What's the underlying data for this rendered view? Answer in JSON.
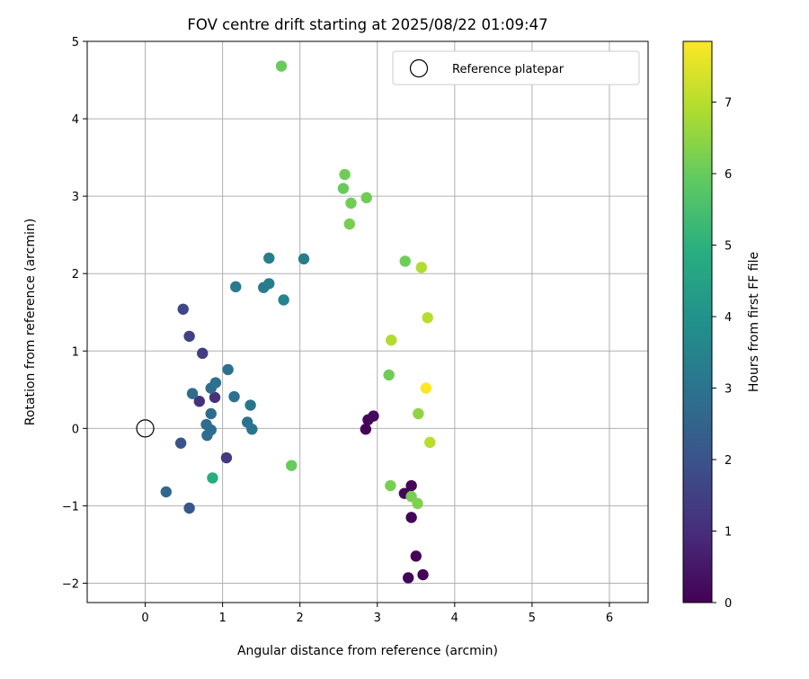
{
  "chart_data": {
    "type": "scatter",
    "title": "FOV centre drift starting at 2025/08/22 01:09:47",
    "xlabel": "Angular distance from reference (arcmin)",
    "ylabel": "Rotation from reference (arcmin)",
    "xlim": [
      -0.75,
      6.5
    ],
    "ylim": [
      -2.25,
      5.0
    ],
    "xticks": [
      0,
      1,
      2,
      3,
      4,
      5,
      6
    ],
    "yticks": [
      -2,
      -1,
      0,
      1,
      2,
      3,
      4,
      5
    ],
    "grid": true,
    "legend": {
      "position": "top-right",
      "entries": [
        "Reference platepar"
      ]
    },
    "reference_point": {
      "x": 0,
      "y": 0
    },
    "colorbar": {
      "label": "Hours from first FF file",
      "range": [
        0,
        7.85
      ],
      "ticks": [
        0,
        1,
        2,
        3,
        4,
        5,
        6,
        7
      ],
      "colormap": "viridis"
    },
    "points": [
      {
        "x": 2.85,
        "y": -0.01,
        "c": 0.1
      },
      {
        "x": 2.88,
        "y": 0.11,
        "c": 0.15
      },
      {
        "x": 2.95,
        "y": 0.16,
        "c": 0.2
      },
      {
        "x": 3.35,
        "y": -0.84,
        "c": 0.15
      },
      {
        "x": 3.44,
        "y": -0.74,
        "c": 0.1
      },
      {
        "x": 3.44,
        "y": -1.15,
        "c": 0.1
      },
      {
        "x": 3.5,
        "y": -1.65,
        "c": 0.1
      },
      {
        "x": 3.4,
        "y": -1.93,
        "c": 0.1
      },
      {
        "x": 3.59,
        "y": -1.89,
        "c": 0.1
      },
      {
        "x": 0.7,
        "y": 0.35,
        "c": 1.1
      },
      {
        "x": 0.9,
        "y": 0.4,
        "c": 1.1
      },
      {
        "x": 1.05,
        "y": -0.38,
        "c": 1.3
      },
      {
        "x": 0.74,
        "y": 0.97,
        "c": 1.4
      },
      {
        "x": 0.57,
        "y": 1.19,
        "c": 1.5
      },
      {
        "x": 0.49,
        "y": 1.54,
        "c": 1.7
      },
      {
        "x": 0.46,
        "y": -0.19,
        "c": 2.0
      },
      {
        "x": 0.57,
        "y": -1.03,
        "c": 2.1
      },
      {
        "x": 0.27,
        "y": -0.82,
        "c": 2.6
      },
      {
        "x": 0.61,
        "y": 0.45,
        "c": 2.8
      },
      {
        "x": 0.79,
        "y": 0.05,
        "c": 2.8
      },
      {
        "x": 0.8,
        "y": -0.09,
        "c": 2.8
      },
      {
        "x": 0.85,
        "y": -0.02,
        "c": 2.8
      },
      {
        "x": 0.85,
        "y": 0.19,
        "c": 2.8
      },
      {
        "x": 0.85,
        "y": 0.52,
        "c": 2.8
      },
      {
        "x": 0.91,
        "y": 0.59,
        "c": 2.9
      },
      {
        "x": 1.07,
        "y": 0.76,
        "c": 2.9
      },
      {
        "x": 1.15,
        "y": 0.41,
        "c": 2.9
      },
      {
        "x": 1.32,
        "y": 0.08,
        "c": 3.0
      },
      {
        "x": 1.36,
        "y": 0.3,
        "c": 3.0
      },
      {
        "x": 1.38,
        "y": -0.01,
        "c": 3.0
      },
      {
        "x": 1.17,
        "y": 1.83,
        "c": 3.2
      },
      {
        "x": 1.53,
        "y": 1.82,
        "c": 3.2
      },
      {
        "x": 1.6,
        "y": 1.87,
        "c": 3.3
      },
      {
        "x": 1.6,
        "y": 2.2,
        "c": 3.3
      },
      {
        "x": 1.79,
        "y": 1.66,
        "c": 3.5
      },
      {
        "x": 2.05,
        "y": 2.19,
        "c": 3.3
      },
      {
        "x": 0.87,
        "y": -0.64,
        "c": 4.8
      },
      {
        "x": 1.89,
        "y": -0.48,
        "c": 6.0
      },
      {
        "x": 1.76,
        "y": 4.68,
        "c": 6.0
      },
      {
        "x": 2.58,
        "y": 3.28,
        "c": 6.1
      },
      {
        "x": 2.56,
        "y": 3.1,
        "c": 6.0
      },
      {
        "x": 2.66,
        "y": 2.91,
        "c": 6.1
      },
      {
        "x": 2.86,
        "y": 2.98,
        "c": 6.1
      },
      {
        "x": 2.64,
        "y": 2.64,
        "c": 6.2
      },
      {
        "x": 3.36,
        "y": 2.16,
        "c": 6.1
      },
      {
        "x": 3.15,
        "y": 0.69,
        "c": 6.1
      },
      {
        "x": 3.17,
        "y": -0.74,
        "c": 6.2
      },
      {
        "x": 3.44,
        "y": -0.88,
        "c": 6.2
      },
      {
        "x": 3.52,
        "y": -0.97,
        "c": 6.3
      },
      {
        "x": 3.53,
        "y": 0.19,
        "c": 6.5
      },
      {
        "x": 3.57,
        "y": 2.08,
        "c": 6.9
      },
      {
        "x": 3.18,
        "y": 1.14,
        "c": 6.9
      },
      {
        "x": 3.65,
        "y": 1.43,
        "c": 7.0
      },
      {
        "x": 3.68,
        "y": -0.18,
        "c": 7.0
      },
      {
        "x": 3.63,
        "y": 0.52,
        "c": 7.85
      }
    ]
  }
}
